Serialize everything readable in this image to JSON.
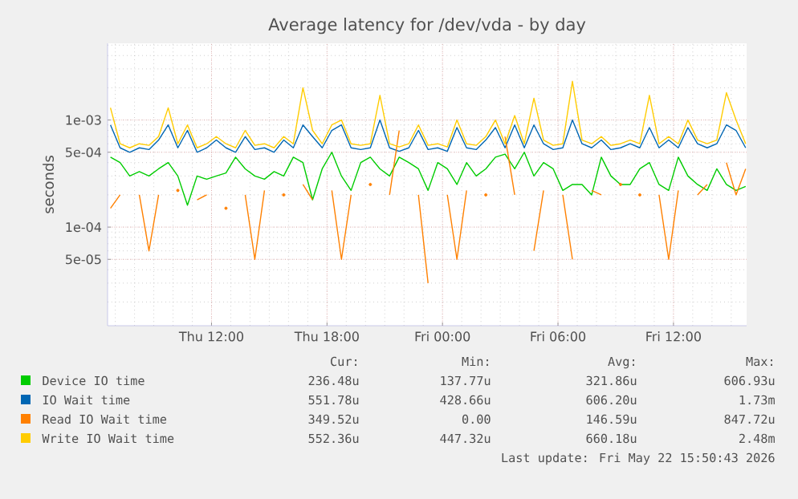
{
  "chart_data": {
    "type": "line",
    "title": "Average latency for /dev/vda - by day",
    "ylabel": "seconds",
    "log": "y",
    "grid": true,
    "legend": "bottom",
    "xlim": [
      "2026-05-21T06:36",
      "2026-05-22T15:48"
    ],
    "ylim": [
      1.2e-05,
      0.0052
    ],
    "xticks": [
      {
        "value": "2026-05-21T12:00",
        "label": "Thu 12:00"
      },
      {
        "value": "2026-05-21T18:00",
        "label": "Thu 18:00"
      },
      {
        "value": "2026-05-22T00:00",
        "label": "Fri 00:00"
      },
      {
        "value": "2026-05-22T06:00",
        "label": "Fri 06:00"
      },
      {
        "value": "2026-05-22T12:00",
        "label": "Fri 12:00"
      }
    ],
    "yticks": [
      {
        "value": 5e-05,
        "label": "5e-05"
      },
      {
        "value": 0.0001,
        "label": "1e-04"
      },
      {
        "value": 0.0005,
        "label": "5e-04"
      },
      {
        "value": 0.001,
        "label": "1e-03"
      }
    ],
    "x": [
      "2026-05-21T06:45",
      "2026-05-21T07:15",
      "2026-05-21T07:45",
      "2026-05-21T08:15",
      "2026-05-21T08:45",
      "2026-05-21T09:15",
      "2026-05-21T09:45",
      "2026-05-21T10:15",
      "2026-05-21T10:45",
      "2026-05-21T11:15",
      "2026-05-21T11:45",
      "2026-05-21T12:15",
      "2026-05-21T12:45",
      "2026-05-21T13:15",
      "2026-05-21T13:45",
      "2026-05-21T14:15",
      "2026-05-21T14:45",
      "2026-05-21T15:15",
      "2026-05-21T15:45",
      "2026-05-21T16:15",
      "2026-05-21T16:45",
      "2026-05-21T17:15",
      "2026-05-21T17:45",
      "2026-05-21T18:15",
      "2026-05-21T18:45",
      "2026-05-21T19:15",
      "2026-05-21T19:45",
      "2026-05-21T20:15",
      "2026-05-21T20:45",
      "2026-05-21T21:15",
      "2026-05-21T21:45",
      "2026-05-21T22:15",
      "2026-05-21T22:45",
      "2026-05-21T23:15",
      "2026-05-21T23:45",
      "2026-05-22T00:15",
      "2026-05-22T00:45",
      "2026-05-22T01:15",
      "2026-05-22T01:45",
      "2026-05-22T02:15",
      "2026-05-22T02:45",
      "2026-05-22T03:15",
      "2026-05-22T03:45",
      "2026-05-22T04:15",
      "2026-05-22T04:45",
      "2026-05-22T05:15",
      "2026-05-22T05:45",
      "2026-05-22T06:15",
      "2026-05-22T06:45",
      "2026-05-22T07:15",
      "2026-05-22T07:45",
      "2026-05-22T08:15",
      "2026-05-22T08:45",
      "2026-05-22T09:15",
      "2026-05-22T09:45",
      "2026-05-22T10:15",
      "2026-05-22T10:45",
      "2026-05-22T11:15",
      "2026-05-22T11:45",
      "2026-05-22T12:15",
      "2026-05-22T12:45",
      "2026-05-22T13:15",
      "2026-05-22T13:45",
      "2026-05-22T14:15",
      "2026-05-22T14:45",
      "2026-05-22T15:15",
      "2026-05-22T15:45"
    ],
    "series": [
      {
        "name": "Device IO time",
        "color": "#00cc00",
        "values": [
          0.00045,
          0.0004,
          0.0003,
          0.00033,
          0.0003,
          0.00035,
          0.0004,
          0.0003,
          0.00016,
          0.0003,
          0.00028,
          0.0003,
          0.00032,
          0.00045,
          0.00035,
          0.0003,
          0.00028,
          0.00033,
          0.0003,
          0.00045,
          0.0004,
          0.00018,
          0.00035,
          0.0005,
          0.0003,
          0.00022,
          0.0004,
          0.00045,
          0.00035,
          0.0003,
          0.00045,
          0.0004,
          0.00035,
          0.00022,
          0.0004,
          0.00035,
          0.00025,
          0.0004,
          0.0003,
          0.00035,
          0.00045,
          0.00048,
          0.00035,
          0.0005,
          0.0003,
          0.0004,
          0.00035,
          0.00022,
          0.00025,
          0.00025,
          0.0002,
          0.00045,
          0.0003,
          0.00025,
          0.00025,
          0.00035,
          0.0004,
          0.00025,
          0.00022,
          0.00045,
          0.0003,
          0.00025,
          0.00022,
          0.00035,
          0.00025,
          0.00022,
          0.00024
        ]
      },
      {
        "name": "IO Wait time",
        "color": "#0066b3",
        "values": [
          0.0009,
          0.00055,
          0.0005,
          0.00055,
          0.00053,
          0.00065,
          0.0009,
          0.00055,
          0.0008,
          0.0005,
          0.00055,
          0.00065,
          0.00055,
          0.0005,
          0.0007,
          0.00053,
          0.00055,
          0.0005,
          0.00065,
          0.00055,
          0.0009,
          0.0007,
          0.00055,
          0.0008,
          0.0009,
          0.00055,
          0.00053,
          0.00055,
          0.001,
          0.00055,
          0.00051,
          0.00055,
          0.0008,
          0.00053,
          0.00055,
          0.00051,
          0.00085,
          0.00055,
          0.00053,
          0.00065,
          0.00085,
          0.00055,
          0.0009,
          0.00055,
          0.0009,
          0.0006,
          0.00053,
          0.00055,
          0.001,
          0.0006,
          0.00055,
          0.00065,
          0.00053,
          0.00055,
          0.0006,
          0.00055,
          0.00085,
          0.00055,
          0.00065,
          0.00055,
          0.00085,
          0.0006,
          0.00055,
          0.0006,
          0.0009,
          0.0008,
          0.00055
        ]
      },
      {
        "name": "Read IO Wait time",
        "color": "#ff8000",
        "values": [
          0.00015,
          0.0002,
          null,
          0.0002,
          6e-05,
          0.0002,
          null,
          0.00022,
          null,
          0.00018,
          0.0002,
          null,
          0.00015,
          null,
          0.0002,
          5e-05,
          0.00022,
          null,
          0.0002,
          null,
          0.00025,
          0.00018,
          null,
          0.00022,
          5e-05,
          0.0002,
          null,
          0.00025,
          null,
          0.0002,
          0.0008,
          null,
          0.0002,
          3e-05,
          null,
          0.0002,
          5e-05,
          0.00022,
          null,
          0.0002,
          null,
          0.0007,
          0.0002,
          null,
          6e-05,
          0.00022,
          null,
          0.0002,
          5e-05,
          null,
          0.00022,
          0.0002,
          null,
          0.00025,
          null,
          0.0002,
          null,
          0.0002,
          5e-05,
          0.00022,
          null,
          0.0002,
          0.00025,
          null,
          0.0004,
          0.0002,
          0.00035
        ]
      },
      {
        "name": "Write IO Wait time",
        "color": "#ffcc00",
        "values": [
          0.0013,
          0.0006,
          0.00055,
          0.0006,
          0.00058,
          0.0007,
          0.0013,
          0.0006,
          0.0009,
          0.00055,
          0.0006,
          0.0007,
          0.0006,
          0.00055,
          0.0008,
          0.00058,
          0.0006,
          0.00055,
          0.0007,
          0.0006,
          0.002,
          0.0008,
          0.0006,
          0.0009,
          0.001,
          0.0006,
          0.00058,
          0.0006,
          0.0017,
          0.0006,
          0.00056,
          0.0006,
          0.0009,
          0.00058,
          0.0006,
          0.00056,
          0.001,
          0.0006,
          0.00058,
          0.0007,
          0.001,
          0.0006,
          0.0011,
          0.0006,
          0.0016,
          0.00065,
          0.00058,
          0.0006,
          0.0023,
          0.00065,
          0.0006,
          0.0007,
          0.00058,
          0.0006,
          0.00065,
          0.0006,
          0.0017,
          0.0006,
          0.0007,
          0.0006,
          0.001,
          0.00065,
          0.0006,
          0.00065,
          0.0018,
          0.001,
          0.0006
        ]
      }
    ],
    "annotations": [
      "Cur:",
      "Min:",
      "Avg:",
      "Max:",
      "236.48u",
      "137.77u",
      "321.86u",
      "606.93u",
      "551.78u",
      "428.66u",
      "606.20u",
      "1.73m",
      "349.52u",
      "0.00",
      "146.59u",
      "847.72u",
      "552.36u",
      "447.32u",
      "660.18u",
      "2.48m",
      "Last update: Fri May 22 15:50:43 2026"
    ]
  }
}
